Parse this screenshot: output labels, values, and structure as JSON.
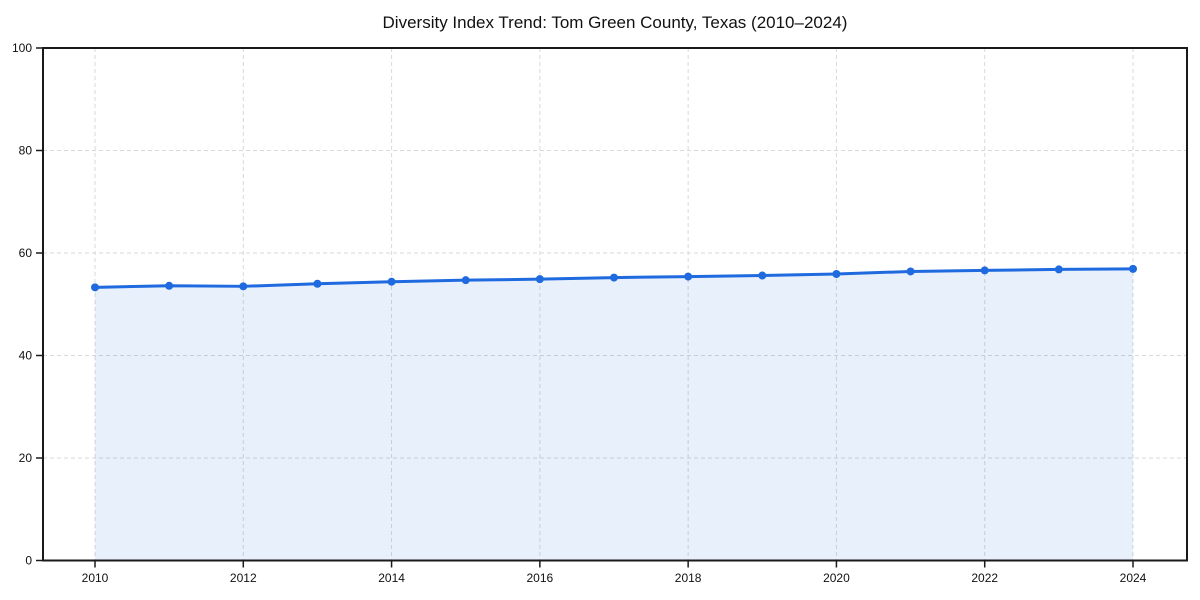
{
  "chart_data": {
    "type": "line",
    "title": "Diversity Index Trend: Tom Green County, Texas (2010–2024)",
    "x": [
      2010,
      2011,
      2012,
      2013,
      2014,
      2015,
      2016,
      2017,
      2018,
      2019,
      2020,
      2021,
      2022,
      2023,
      2024
    ],
    "series": [
      {
        "name": "Diversity Index",
        "values": [
          53.3,
          53.6,
          53.5,
          54.0,
          54.4,
          54.7,
          54.9,
          55.2,
          55.4,
          55.6,
          55.9,
          56.4,
          56.6,
          56.8,
          56.9
        ]
      }
    ],
    "xlabel": "",
    "ylabel": "",
    "ylim": [
      0,
      100
    ],
    "yticks": [
      0,
      20,
      40,
      60,
      80,
      100
    ],
    "xticks": [
      2010,
      2012,
      2014,
      2016,
      2018,
      2020,
      2022,
      2024
    ],
    "grid": true,
    "grid_style": "dashed",
    "legend_position": "none",
    "marker": "circle",
    "area_fill": true,
    "colors": {
      "line": "#1f6ade",
      "marker": "#1f6ade",
      "area_fill": "#1f6ade",
      "area_fill_opacity": "0.10",
      "grid": "#d9d9d9",
      "axis": "#1a1a1a",
      "title_text": "#111111",
      "tick_text": "#111111",
      "background": "#ffffff"
    }
  }
}
